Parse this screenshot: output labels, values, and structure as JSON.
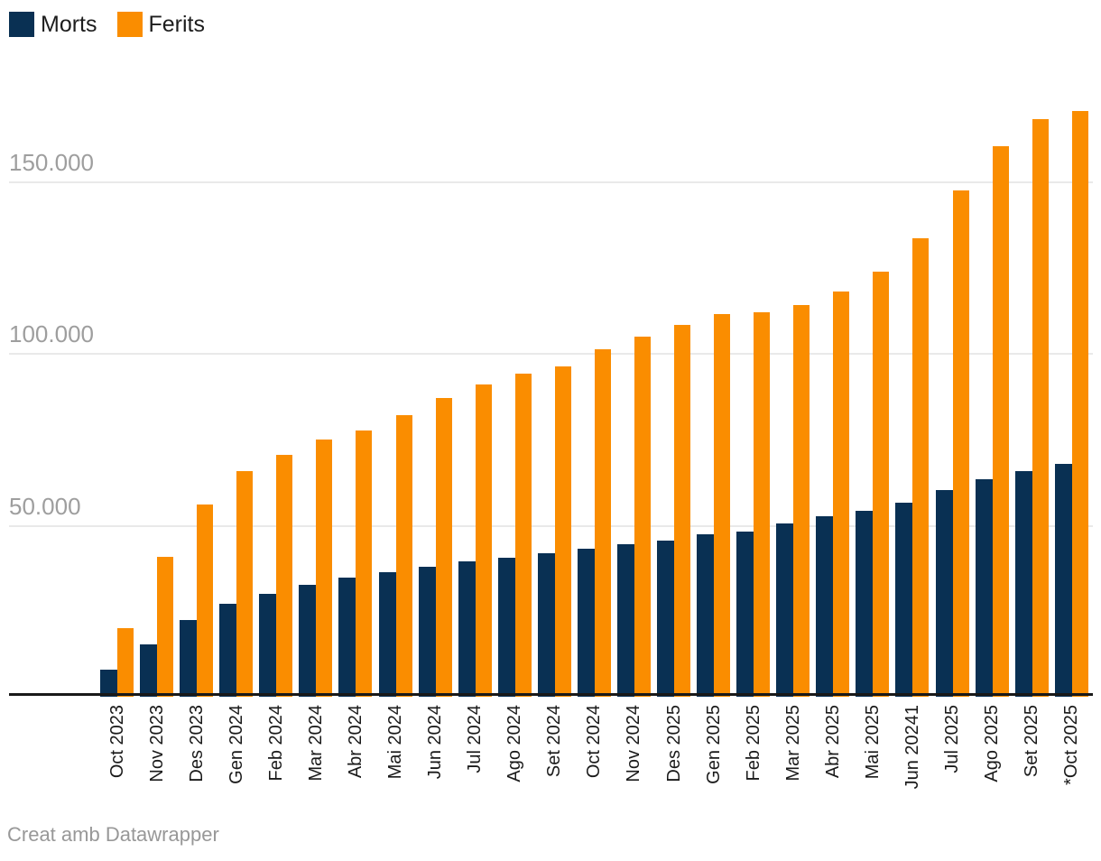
{
  "legend": {
    "items": [
      {
        "label": "Morts",
        "color": "#093053"
      },
      {
        "label": "Ferits",
        "color": "#fa8d00"
      }
    ]
  },
  "footer": {
    "text": "Creat amb Datawrapper"
  },
  "colors": {
    "morts": "#093053",
    "ferits": "#fa8d00",
    "gridline": "#e9e9e9",
    "axis": "#191919",
    "ytick_text": "#9e9e9e",
    "xtick_text": "#1a1a1a"
  },
  "chart_data": {
    "type": "bar",
    "title": "",
    "xlabel": "",
    "ylabel": "",
    "grid": "horizontal",
    "legend_position": "top-left",
    "ylim": [
      0,
      175000
    ],
    "yticks": [
      {
        "value": 50000,
        "label": "50.000"
      },
      {
        "value": 100000,
        "label": "100.000"
      },
      {
        "value": 150000,
        "label": "150.000"
      }
    ],
    "categories": [
      "Oct 2023",
      "Nov 2023",
      "Des 2023",
      "Gen 2024",
      "Feb 2024",
      "Mar 2024",
      "Abr 2024",
      "Mai 2024",
      "Jun 2024",
      "Jul 2024",
      "Ago 2024",
      "Set 2024",
      "Oct 2024",
      "Nov 2024",
      "Des 2025",
      "Gen 2025",
      "Feb 2025",
      "Mar 2025",
      "Abr 2025",
      "Mai 2025",
      "Jun 20241",
      "Jul 2025",
      "Ago 2025",
      "Set 2025",
      "*Oct 2025"
    ],
    "series": [
      {
        "name": "Morts",
        "color": "#093053",
        "values": [
          8000,
          15200,
          22300,
          27000,
          30000,
          32600,
          34600,
          36200,
          37900,
          39300,
          40500,
          41700,
          43200,
          44300,
          45500,
          47400,
          48100,
          50400,
          52500,
          54200,
          56400,
          60300,
          63400,
          65800,
          67800
        ]
      },
      {
        "name": "Ferits",
        "color": "#fa8d00",
        "values": [
          20100,
          40800,
          56100,
          65800,
          70300,
          75000,
          77400,
          81900,
          86900,
          90800,
          94000,
          96100,
          101300,
          104800,
          108200,
          111300,
          111900,
          114100,
          118000,
          123700,
          133500,
          147400,
          160300,
          168300,
          170600
        ]
      }
    ]
  }
}
